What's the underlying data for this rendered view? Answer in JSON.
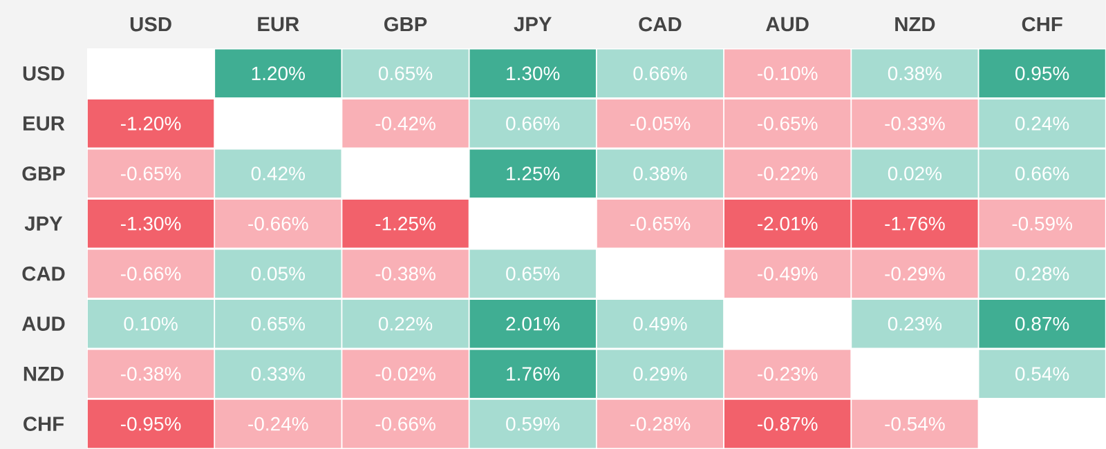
{
  "chart_data": {
    "type": "heatmap",
    "categories": [
      "USD",
      "EUR",
      "GBP",
      "JPY",
      "CAD",
      "AUD",
      "NZD",
      "CHF"
    ],
    "y_categories": [
      "USD",
      "EUR",
      "GBP",
      "JPY",
      "CAD",
      "AUD",
      "NZD",
      "CHF"
    ],
    "cells": [
      [
        null,
        1.2,
        0.65,
        1.3,
        0.66,
        -0.1,
        0.38,
        0.95
      ],
      [
        -1.2,
        null,
        -0.42,
        0.66,
        -0.05,
        -0.65,
        -0.33,
        0.24
      ],
      [
        -0.65,
        0.42,
        null,
        1.25,
        0.38,
        -0.22,
        0.02,
        0.66
      ],
      [
        -1.3,
        -0.66,
        -1.25,
        null,
        -0.65,
        -2.01,
        -1.76,
        -0.59
      ],
      [
        -0.66,
        0.05,
        -0.38,
        0.65,
        null,
        -0.49,
        -0.29,
        0.28
      ],
      [
        0.1,
        0.65,
        0.22,
        2.01,
        0.49,
        null,
        0.23,
        0.87
      ],
      [
        -0.38,
        0.33,
        -0.02,
        1.76,
        0.29,
        -0.23,
        null,
        0.54
      ],
      [
        -0.95,
        -0.24,
        -0.66,
        0.59,
        -0.28,
        -0.87,
        -0.54,
        null
      ]
    ],
    "cell_labels": [
      [
        null,
        "1.20%",
        "0.65%",
        "1.30%",
        "0.66%",
        "-0.10%",
        "0.38%",
        "0.95%"
      ],
      [
        "-1.20%",
        null,
        "-0.42%",
        "0.66%",
        "-0.05%",
        "-0.65%",
        "-0.33%",
        "0.24%"
      ],
      [
        "-0.65%",
        "0.42%",
        null,
        "1.25%",
        "0.38%",
        "-0.22%",
        "0.02%",
        "0.66%"
      ],
      [
        "-1.30%",
        "-0.66%",
        "-1.25%",
        null,
        "-0.65%",
        "-2.01%",
        "-1.76%",
        "-0.59%"
      ],
      [
        "-0.66%",
        "0.05%",
        "-0.38%",
        "0.65%",
        null,
        "-0.49%",
        "-0.29%",
        "0.28%"
      ],
      [
        "0.10%",
        "0.65%",
        "0.22%",
        "2.01%",
        "0.49%",
        null,
        "0.23%",
        "0.87%"
      ],
      [
        "-0.38%",
        "0.33%",
        "-0.02%",
        "1.76%",
        "0.29%",
        "-0.23%",
        null,
        "0.54%"
      ],
      [
        "-0.95%",
        "-0.24%",
        "-0.66%",
        "0.59%",
        "-0.28%",
        "-0.87%",
        "-0.54%",
        null
      ]
    ],
    "data_labels": true
  }
}
